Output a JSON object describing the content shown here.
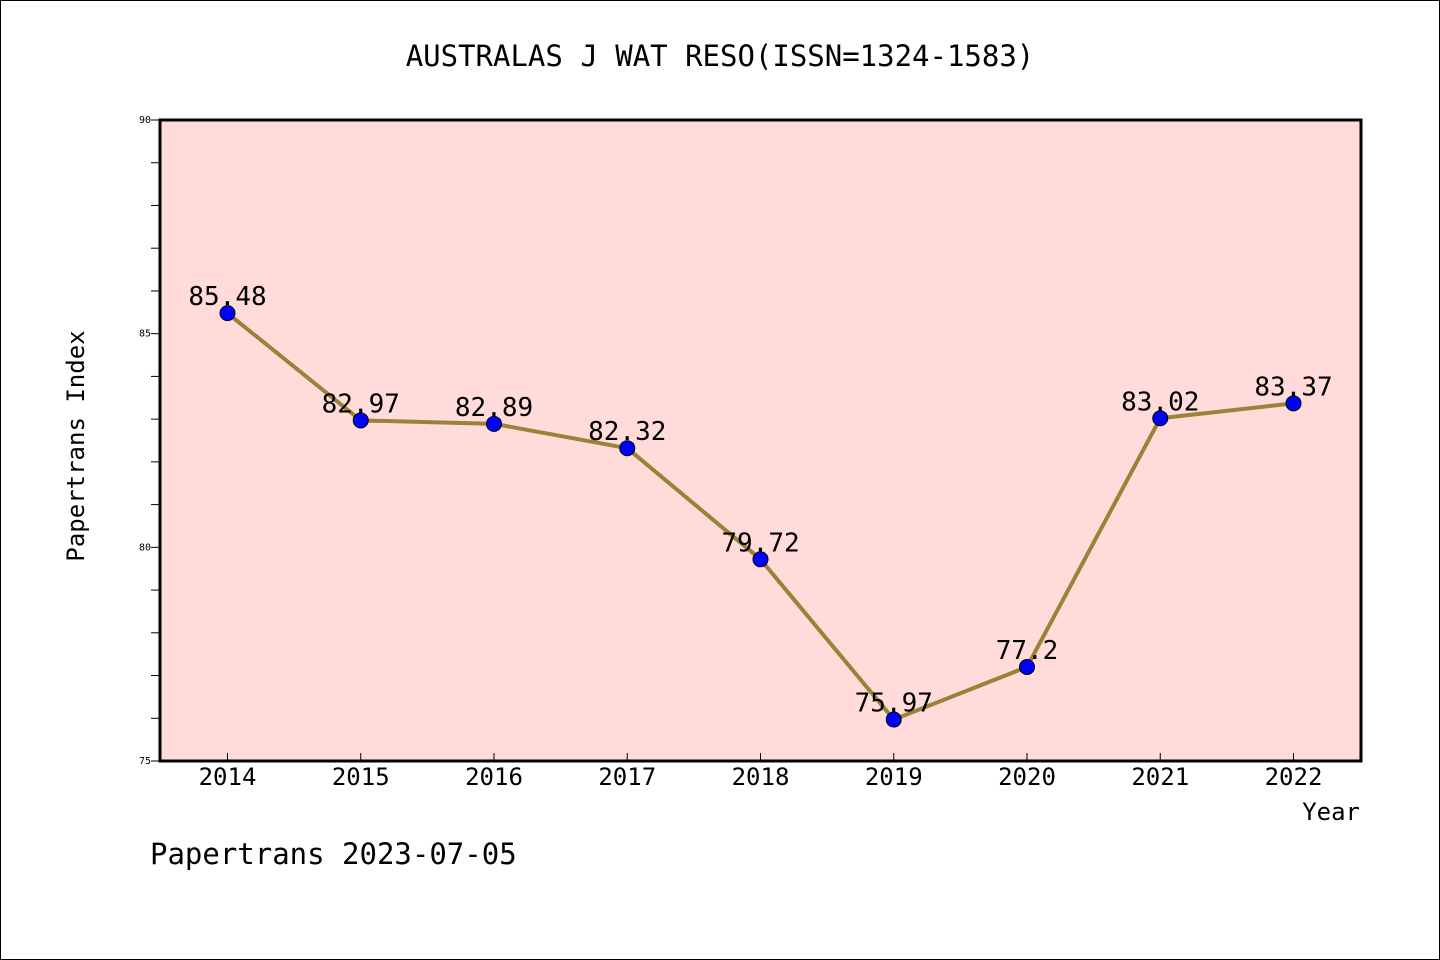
{
  "chart_data": {
    "type": "line",
    "title": "AUSTRALAS J WAT RESO(ISSN=1324-1583)",
    "xlabel": "Year",
    "ylabel": "Papertrans Index",
    "x": [
      "2014",
      "2015",
      "2016",
      "2017",
      "2018",
      "2019",
      "2020",
      "2021",
      "2022"
    ],
    "series": [
      {
        "values": [
          85.48,
          82.97,
          82.89,
          82.32,
          79.72,
          75.97,
          77.2,
          83.02,
          83.37
        ],
        "labels": [
          "85.48",
          "82.97",
          "82.89",
          "82.32",
          "79.72",
          "75.97",
          "77.2",
          "83.02",
          "83.37"
        ]
      }
    ],
    "ylim": [
      75,
      90
    ],
    "yticks": [
      "75",
      "80",
      "85",
      "90"
    ],
    "grid": false,
    "colors": {
      "plot_background": "#ffdcd9",
      "line": "#9c8238",
      "marker": "#0000ff"
    }
  },
  "footer": {
    "watermark": "Papertrans 2023-07-05"
  }
}
